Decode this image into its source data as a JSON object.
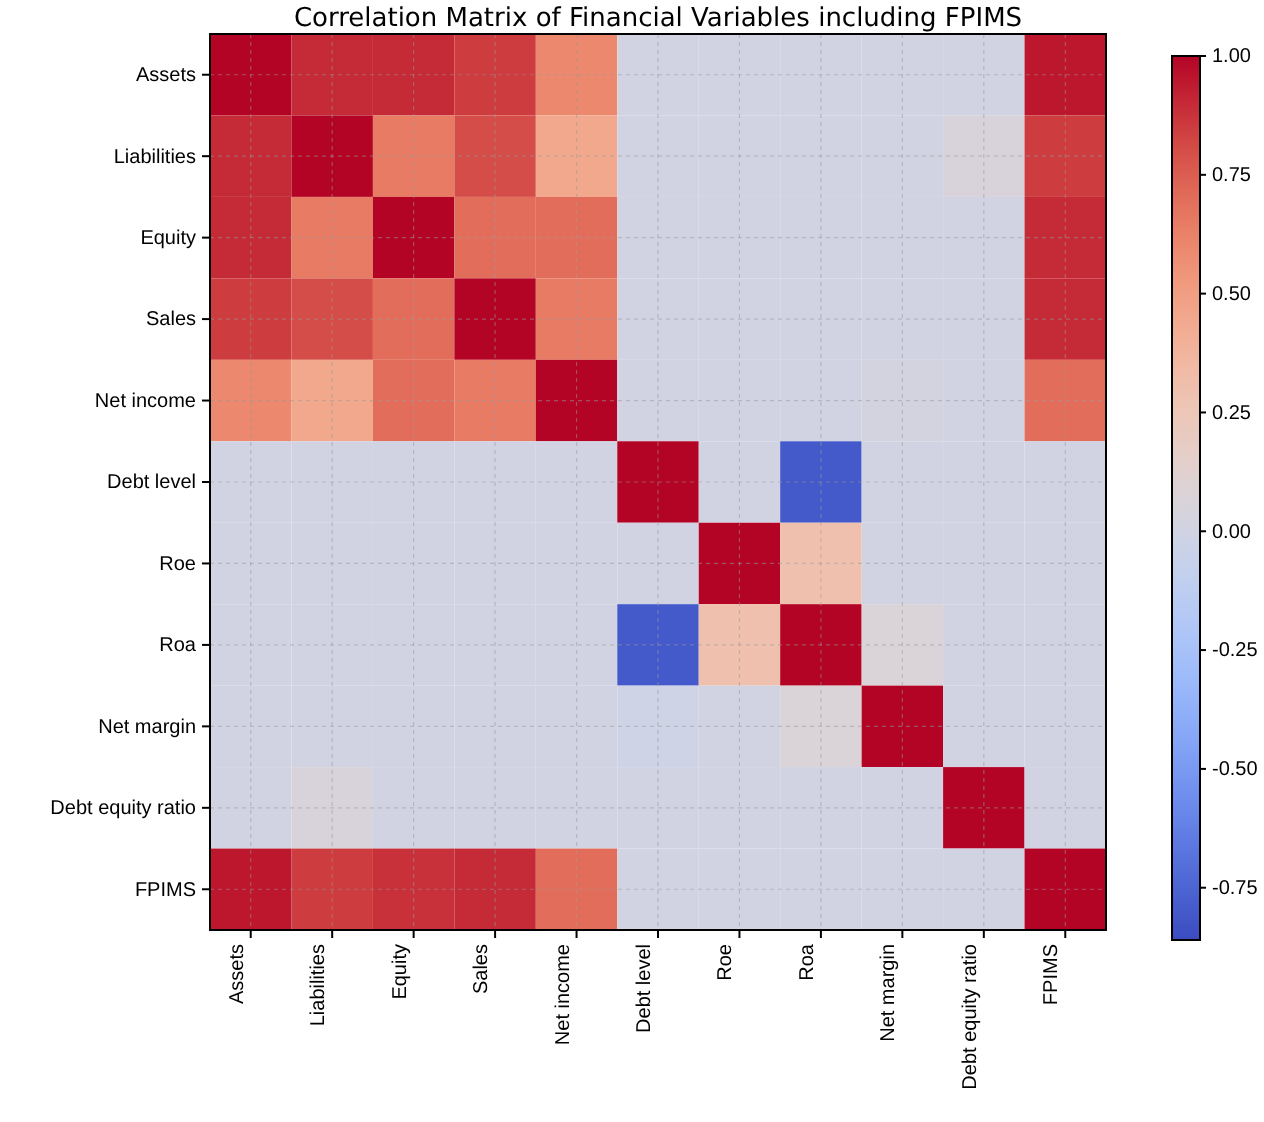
{
  "chart_data": {
    "type": "heatmap",
    "title": "Correlation Matrix of Financial Variables including FPIMS",
    "categories": [
      "Assets",
      "Liabilities",
      "Equity",
      "Sales",
      "Net income",
      "Debt level",
      "Roe",
      "Roa",
      "Net margin",
      "Debt equity ratio",
      "FPIMS"
    ],
    "y_categories": [
      "Assets",
      "Liabilities",
      "Equity",
      "Sales",
      "Net income",
      "Debt level",
      "Roe",
      "Roa",
      "Net margin",
      "Debt equity ratio",
      "FPIMS"
    ],
    "cells": [
      [
        1,
        0.9,
        0.9,
        0.85,
        0.6,
        0,
        0,
        0,
        0,
        0,
        0.95
      ],
      [
        0.9,
        1,
        0.65,
        0.8,
        0.45,
        0,
        0,
        0,
        0,
        0.05,
        0.85
      ],
      [
        0.9,
        0.65,
        1,
        0.7,
        0.7,
        0,
        0,
        0,
        0,
        0,
        0.9
      ],
      [
        0.85,
        0.8,
        0.7,
        1,
        0.65,
        0,
        0,
        0,
        0,
        0,
        0.9
      ],
      [
        0.6,
        0.45,
        0.7,
        0.65,
        1,
        0,
        0,
        0,
        0.02,
        0,
        0.7
      ],
      [
        0,
        0,
        0,
        0,
        0,
        1,
        0,
        -0.8,
        0,
        0,
        0
      ],
      [
        0,
        0,
        0,
        0,
        0,
        0,
        1,
        0.3,
        0,
        0,
        0
      ],
      [
        0,
        0,
        0,
        0,
        0,
        -0.8,
        0.3,
        1,
        0.07,
        0,
        0
      ],
      [
        0,
        0,
        0,
        0,
        0,
        -0.02,
        0,
        0.07,
        1,
        0,
        0
      ],
      [
        0,
        0.05,
        0,
        0,
        0,
        0,
        0,
        0,
        0,
        1,
        0
      ],
      [
        0.95,
        0.85,
        0.88,
        0.9,
        0.7,
        0,
        0,
        0,
        0,
        0,
        1
      ]
    ],
    "clim": [
      -0.86,
      1
    ],
    "cticks": [
      {
        "value": -0.75,
        "label": "-0.75"
      },
      {
        "value": -0.5,
        "label": "-0.50"
      },
      {
        "value": -0.25,
        "label": "-0.25"
      },
      {
        "value": 0,
        "label": "0.00"
      },
      {
        "value": 0.25,
        "label": "0.25"
      },
      {
        "value": 0.5,
        "label": "0.50"
      },
      {
        "value": 0.75,
        "label": "0.75"
      },
      {
        "value": 1,
        "label": "1.00"
      }
    ],
    "grid": true
  }
}
